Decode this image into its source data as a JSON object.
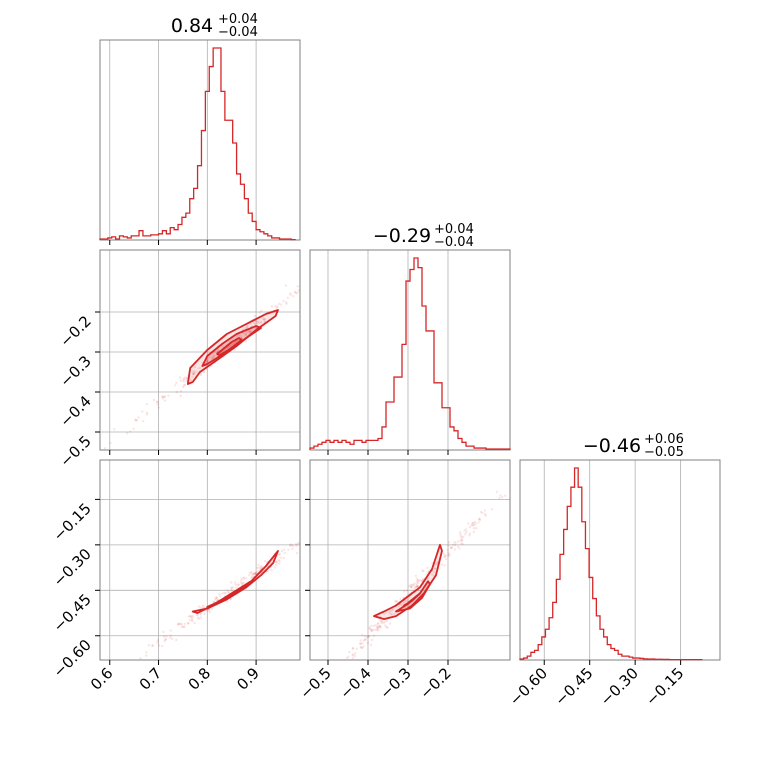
{
  "chart_data": {
    "type": "corner",
    "color": "#d62728",
    "titles": [
      {
        "value": "0.84",
        "plus": "+0.04",
        "minus": "−0.04"
      },
      {
        "value": "−0.29",
        "plus": "+0.04",
        "minus": "−0.04"
      },
      {
        "value": "−0.46",
        "plus": "+0.06",
        "minus": "−0.05"
      }
    ],
    "parameters": [
      {
        "range": [
          0.58,
          0.99
        ],
        "ticks": [
          0.6,
          0.7,
          0.8,
          0.9
        ],
        "tick_labels": [
          "0.6",
          "0.7",
          "0.8",
          "0.9"
        ]
      },
      {
        "range": [
          -0.545,
          -0.045
        ],
        "ticks": [
          -0.5,
          -0.4,
          -0.3,
          -0.2
        ],
        "tick_labels": [
          "−0.5",
          "−0.4",
          "−0.3",
          "−0.2"
        ]
      },
      {
        "range": [
          -0.68,
          -0.02
        ],
        "ticks": [
          -0.6,
          -0.45,
          -0.3,
          -0.15
        ],
        "tick_labels": [
          "−0.60",
          "−0.45",
          "−0.30",
          "−0.15"
        ]
      }
    ],
    "grid": true,
    "histograms": [
      {
        "param": 0,
        "bins": [
          0.58,
          0.588,
          0.596,
          0.604,
          0.612,
          0.62,
          0.628,
          0.636,
          0.644,
          0.652,
          0.66,
          0.668,
          0.676,
          0.684,
          0.692,
          0.7,
          0.708,
          0.716,
          0.724,
          0.732,
          0.74,
          0.748,
          0.756,
          0.764,
          0.772,
          0.78,
          0.788,
          0.796,
          0.804,
          0.812,
          0.82,
          0.828,
          0.836,
          0.844,
          0.852,
          0.86,
          0.868,
          0.876,
          0.884,
          0.892,
          0.9,
          0.908,
          0.916,
          0.924,
          0.932,
          0.94,
          0.948,
          0.956,
          0.964,
          0.972,
          0.98
        ],
        "counts": [
          0.005,
          0.005,
          0.01,
          0.015,
          0.005,
          0.02,
          0.015,
          0.01,
          0.02,
          0.02,
          0.045,
          0.02,
          0.02,
          0.025,
          0.025,
          0.03,
          0.045,
          0.03,
          0.06,
          0.05,
          0.075,
          0.11,
          0.13,
          0.2,
          0.25,
          0.36,
          0.53,
          0.72,
          0.84,
          0.93,
          0.93,
          0.72,
          0.58,
          0.58,
          0.47,
          0.32,
          0.27,
          0.2,
          0.13,
          0.09,
          0.05,
          0.04,
          0.03,
          0.02,
          0.01,
          0.01,
          0.005,
          0.005,
          0.005,
          0.002
        ]
      },
      {
        "param": 1,
        "bins": [
          -0.545,
          -0.535,
          -0.525,
          -0.515,
          -0.505,
          -0.495,
          -0.485,
          -0.475,
          -0.465,
          -0.455,
          -0.445,
          -0.435,
          -0.425,
          -0.415,
          -0.405,
          -0.395,
          -0.385,
          -0.375,
          -0.365,
          -0.355,
          -0.345,
          -0.335,
          -0.325,
          -0.315,
          -0.305,
          -0.295,
          -0.285,
          -0.275,
          -0.265,
          -0.255,
          -0.245,
          -0.235,
          -0.225,
          -0.215,
          -0.205,
          -0.195,
          -0.185,
          -0.175,
          -0.165,
          -0.155,
          -0.145,
          -0.135,
          -0.125,
          -0.115,
          -0.105,
          -0.095,
          -0.085,
          -0.075,
          -0.065,
          -0.055,
          -0.045
        ],
        "counts": [
          0.01,
          0.02,
          0.03,
          0.04,
          0.05,
          0.04,
          0.05,
          0.04,
          0.05,
          0.04,
          0.03,
          0.05,
          0.05,
          0.04,
          0.05,
          0.05,
          0.05,
          0.06,
          0.12,
          0.25,
          0.25,
          0.38,
          0.38,
          0.55,
          0.88,
          0.94,
          1.0,
          0.95,
          0.75,
          0.62,
          0.62,
          0.35,
          0.35,
          0.22,
          0.22,
          0.12,
          0.1,
          0.06,
          0.04,
          0.02,
          0.02,
          0.01,
          0.01,
          0.01,
          0.005,
          0.005,
          0.005,
          0.005,
          0.005,
          0.005
        ]
      },
      {
        "param": 2,
        "bins": [
          -0.68,
          -0.668,
          -0.656,
          -0.644,
          -0.632,
          -0.62,
          -0.608,
          -0.596,
          -0.584,
          -0.572,
          -0.56,
          -0.548,
          -0.536,
          -0.524,
          -0.512,
          -0.5,
          -0.488,
          -0.476,
          -0.464,
          -0.452,
          -0.44,
          -0.428,
          -0.416,
          -0.404,
          -0.392,
          -0.38,
          -0.368,
          -0.356,
          -0.344,
          -0.332,
          -0.32,
          -0.308,
          -0.296,
          -0.284,
          -0.272,
          -0.26,
          -0.248,
          -0.236,
          -0.224,
          -0.212,
          -0.2,
          -0.188,
          -0.176,
          -0.164,
          -0.152,
          -0.14,
          -0.128,
          -0.116,
          -0.104,
          -0.092,
          -0.08
        ],
        "counts": [
          0.005,
          0.01,
          0.02,
          0.04,
          0.05,
          0.08,
          0.12,
          0.16,
          0.22,
          0.3,
          0.42,
          0.55,
          0.68,
          0.8,
          0.9,
          1.0,
          0.9,
          0.72,
          0.58,
          0.43,
          0.32,
          0.23,
          0.16,
          0.12,
          0.08,
          0.06,
          0.05,
          0.03,
          0.02,
          0.02,
          0.015,
          0.01,
          0.01,
          0.008,
          0.006,
          0.005,
          0.005,
          0.004,
          0.004,
          0.003,
          0.003,
          0.002,
          0.002,
          0.002,
          0.002,
          0.002,
          0.002,
          0.002,
          0.002,
          0.002
        ]
      }
    ],
    "pairs": [
      {
        "x_param": 0,
        "y_param": 1,
        "contours": [
          [
            [
              0.76,
              -0.38
            ],
            [
              0.765,
              -0.34
            ],
            [
              0.8,
              -0.295
            ],
            [
              0.84,
              -0.255
            ],
            [
              0.88,
              -0.23
            ],
            [
              0.92,
              -0.205
            ],
            [
              0.945,
              -0.195
            ],
            [
              0.94,
              -0.21
            ],
            [
              0.9,
              -0.245
            ],
            [
              0.86,
              -0.285
            ],
            [
              0.82,
              -0.32
            ],
            [
              0.785,
              -0.35
            ],
            [
              0.77,
              -0.375
            ]
          ],
          [
            [
              0.79,
              -0.335
            ],
            [
              0.8,
              -0.31
            ],
            [
              0.83,
              -0.28
            ],
            [
              0.86,
              -0.255
            ],
            [
              0.9,
              -0.235
            ],
            [
              0.91,
              -0.24
            ],
            [
              0.88,
              -0.265
            ],
            [
              0.85,
              -0.29
            ],
            [
              0.82,
              -0.315
            ],
            [
              0.8,
              -0.33
            ]
          ],
          [
            [
              0.82,
              -0.305
            ],
            [
              0.835,
              -0.29
            ],
            [
              0.85,
              -0.275
            ],
            [
              0.865,
              -0.265
            ],
            [
              0.87,
              -0.27
            ],
            [
              0.855,
              -0.285
            ],
            [
              0.84,
              -0.298
            ],
            [
              0.825,
              -0.308
            ]
          ]
        ]
      },
      {
        "x_param": 0,
        "y_param": 2,
        "contours": [
          [
            [
              0.77,
              -0.52
            ],
            [
              0.8,
              -0.51
            ],
            [
              0.84,
              -0.48
            ],
            [
              0.88,
              -0.44
            ],
            [
              0.91,
              -0.4
            ],
            [
              0.935,
              -0.36
            ],
            [
              0.945,
              -0.32
            ],
            [
              0.94,
              -0.33
            ],
            [
              0.92,
              -0.37
            ],
            [
              0.89,
              -0.42
            ],
            [
              0.85,
              -0.46
            ],
            [
              0.81,
              -0.5
            ],
            [
              0.78,
              -0.525
            ]
          ],
          [
            [
              0.8,
              -0.505
            ],
            [
              0.83,
              -0.485
            ],
            [
              0.86,
              -0.46
            ],
            [
              0.885,
              -0.43
            ],
            [
              0.875,
              -0.44
            ],
            [
              0.85,
              -0.465
            ],
            [
              0.82,
              -0.49
            ]
          ]
        ]
      },
      {
        "x_param": 1,
        "y_param": 2,
        "contours": [
          [
            [
              -0.385,
              -0.535
            ],
            [
              -0.36,
              -0.52
            ],
            [
              -0.33,
              -0.5
            ],
            [
              -0.3,
              -0.47
            ],
            [
              -0.27,
              -0.44
            ],
            [
              -0.24,
              -0.38
            ],
            [
              -0.22,
              -0.3
            ],
            [
              -0.215,
              -0.32
            ],
            [
              -0.23,
              -0.4
            ],
            [
              -0.26,
              -0.46
            ],
            [
              -0.29,
              -0.5
            ],
            [
              -0.33,
              -0.535
            ],
            [
              -0.36,
              -0.545
            ]
          ],
          [
            [
              -0.33,
              -0.52
            ],
            [
              -0.3,
              -0.495
            ],
            [
              -0.27,
              -0.46
            ],
            [
              -0.25,
              -0.42
            ],
            [
              -0.245,
              -0.43
            ],
            [
              -0.265,
              -0.475
            ],
            [
              -0.295,
              -0.51
            ]
          ],
          [
            [
              -0.31,
              -0.5
            ],
            [
              -0.29,
              -0.485
            ],
            [
              -0.27,
              -0.46
            ],
            [
              -0.28,
              -0.47
            ],
            [
              -0.3,
              -0.492
            ]
          ]
        ]
      }
    ]
  }
}
